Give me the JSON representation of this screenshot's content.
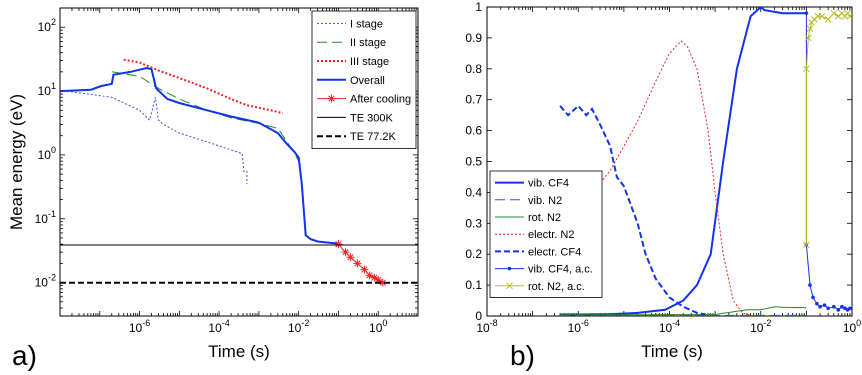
{
  "chart_data": [
    {
      "type": "line",
      "panel_label": "a)",
      "xlabel": "Time (s)",
      "ylabel": "Mean energy (eV)",
      "xscale": "log",
      "yscale": "log",
      "xlim": [
        1e-08,
        10
      ],
      "ylim": [
        0.003,
        200
      ],
      "x_ticks": [
        {
          "value": 1e-06,
          "base": "10",
          "exp": "-6"
        },
        {
          "value": 0.0001,
          "base": "10",
          "exp": "-4"
        },
        {
          "value": 0.01,
          "base": "10",
          "exp": "-2"
        },
        {
          "value": 1,
          "base": "10",
          "exp": "0"
        }
      ],
      "y_ticks": [
        {
          "value": 0.01,
          "base": "10",
          "exp": "-2"
        },
        {
          "value": 0.1,
          "base": "10",
          "exp": "-1"
        },
        {
          "value": 1,
          "base": "10",
          "exp": "0"
        },
        {
          "value": 10,
          "base": "10",
          "exp": "1"
        },
        {
          "value": 100,
          "base": "10",
          "exp": "2"
        }
      ],
      "legend_position": "top-right",
      "series": [
        {
          "name": "I stage",
          "color": "#3355dd",
          "dash": "2,2",
          "width": 1,
          "x": [
            1.5e-08,
            2e-07,
            1e-06,
            1.8e-06,
            2.5e-06,
            3e-06,
            4e-06,
            1e-05,
            5e-05,
            0.0002,
            0.00038,
            0.00042,
            0.0005,
            0.0005
          ],
          "y": [
            10,
            8,
            5,
            3.5,
            8,
            3.5,
            3,
            2.2,
            1.6,
            1.2,
            1.05,
            0.55,
            0.55,
            0.35
          ]
        },
        {
          "name": "II stage",
          "color": "#228822",
          "dash": "10,5",
          "width": 1,
          "x": [
            2e-07,
            1e-06,
            3e-06,
            1e-05,
            5e-05,
            0.0002,
            0.001,
            0.003,
            0.007,
            0.012,
            0.013
          ],
          "y": [
            20,
            17,
            11,
            7.5,
            5,
            3.8,
            3.1,
            2.6,
            1.2,
            0.65,
            0.62
          ]
        },
        {
          "name": "III stage",
          "color": "#ee2222",
          "dash": "2,2",
          "width": 2,
          "x": [
            4e-07,
            1e-06,
            3e-06,
            1e-05,
            5e-05,
            0.0002,
            0.0005,
            0.002,
            0.004
          ],
          "y": [
            31,
            28,
            21,
            16,
            11,
            7.5,
            6,
            5,
            4.5
          ]
        },
        {
          "name": "Overall",
          "color": "#1133ee",
          "dash": "",
          "width": 2,
          "x": [
            1e-08,
            6e-08,
            1.1e-07,
            2e-07,
            2.2e-07,
            6e-07,
            1.5e-06,
            2e-06,
            2.6e-06,
            5e-06,
            1e-05,
            5e-05,
            0.0002,
            0.001,
            0.003,
            0.005,
            0.008,
            0.01,
            0.012,
            0.015,
            0.02,
            0.03,
            0.06,
            0.1
          ],
          "y": [
            10,
            10.5,
            12,
            13,
            18,
            20,
            23,
            22,
            11,
            7.5,
            6.5,
            5,
            4,
            3.2,
            2.2,
            1.5,
            1.1,
            0.9,
            0.35,
            0.055,
            0.048,
            0.044,
            0.042,
            0.041
          ]
        },
        {
          "name": "After cooling",
          "color": "#ee2222",
          "dash": "",
          "width": 1,
          "marker": "star",
          "x": [
            0.1,
            0.15,
            0.2,
            0.3,
            0.45,
            0.6,
            0.8,
            1.0,
            1.3
          ],
          "y": [
            0.04,
            0.03,
            0.025,
            0.02,
            0.016,
            0.013,
            0.012,
            0.011,
            0.01
          ]
        },
        {
          "name": "TE 300K",
          "color": "#000000",
          "dash": "",
          "width": 1,
          "x": [
            1e-08,
            10
          ],
          "y": [
            0.0388,
            0.0388
          ]
        },
        {
          "name": "TE 77.2K",
          "color": "#000000",
          "dash": "6,3",
          "width": 2,
          "x": [
            1e-08,
            10
          ],
          "y": [
            0.00998,
            0.00998
          ]
        }
      ]
    },
    {
      "type": "line",
      "panel_label": "b)",
      "xlabel": "Time (s)",
      "ylabel": "",
      "xscale": "log",
      "yscale": "linear",
      "xlim": [
        1e-08,
        1
      ],
      "ylim": [
        0,
        1
      ],
      "x_ticks": [
        {
          "value": 1e-08,
          "base": "10",
          "exp": "-8"
        },
        {
          "value": 1e-06,
          "base": "10",
          "exp": "-6"
        },
        {
          "value": 0.0001,
          "base": "10",
          "exp": "-4"
        },
        {
          "value": 0.01,
          "base": "10",
          "exp": "-2"
        },
        {
          "value": 1,
          "base": "10",
          "exp": "0"
        }
      ],
      "y_ticks": [
        "0",
        "0.1",
        "0.2",
        "0.3",
        "0.4",
        "0.5",
        "0.6",
        "0.7",
        "0.8",
        "0.9",
        "1"
      ],
      "legend_position": "bottom-left",
      "series": [
        {
          "name": "vib. CF4",
          "color": "#1133ee",
          "dash": "",
          "width": 2,
          "x": [
            4e-07,
            1e-06,
            5e-06,
            2e-05,
            8e-05,
            0.0002,
            0.0004,
            0.0008,
            0.0015,
            0.003,
            0.006,
            0.01,
            0.012,
            0.03,
            0.1
          ],
          "y": [
            0.005,
            0.005,
            0.006,
            0.01,
            0.02,
            0.05,
            0.1,
            0.2,
            0.5,
            0.8,
            0.97,
            1.0,
            0.99,
            0.98,
            0.98
          ]
        },
        {
          "name": "vib. N2",
          "color": "#3355dd",
          "dash": "10,5",
          "width": 1,
          "x": [
            4e-07,
            1e-06,
            1e-05,
            0.0001,
            0.001,
            0.01,
            0.1
          ],
          "y": [
            0.002,
            0.002,
            0.002,
            0.002,
            0.002,
            0.002,
            0.002
          ]
        },
        {
          "name": "rot. N2",
          "color": "#228822",
          "dash": "",
          "width": 1,
          "x": [
            4e-07,
            1e-05,
            0.001,
            0.005,
            0.01,
            0.02,
            0.03,
            0.1
          ],
          "y": [
            0.004,
            0.004,
            0.005,
            0.02,
            0.02,
            0.03,
            0.028,
            0.027
          ]
        },
        {
          "name": "electr. N2",
          "color": "#ee2222",
          "dash": "2,2",
          "width": 1,
          "x": [
            2e-06,
            3e-06,
            5e-06,
            1e-05,
            2e-05,
            5e-05,
            0.0001,
            0.00018,
            0.00025,
            0.0004,
            0.0007,
            0.001,
            0.0015,
            0.0025,
            0.004,
            0.006
          ],
          "y": [
            0.2,
            0.43,
            0.47,
            0.55,
            0.63,
            0.76,
            0.85,
            0.89,
            0.87,
            0.8,
            0.6,
            0.4,
            0.2,
            0.05,
            0.01,
            0.002
          ]
        },
        {
          "name": "electr. CF4",
          "color": "#1133ee",
          "dash": "6,3",
          "width": 2,
          "x": [
            4e-07,
            6e-07,
            1e-06,
            1.5e-06,
            2e-06,
            3e-06,
            5e-06,
            7e-06,
            1e-05,
            1.5e-05,
            2e-05,
            3e-05,
            5e-05,
            0.0001,
            0.0002,
            0.0004,
            0.0006
          ],
          "y": [
            0.68,
            0.65,
            0.68,
            0.65,
            0.67,
            0.62,
            0.55,
            0.45,
            0.42,
            0.35,
            0.3,
            0.2,
            0.12,
            0.06,
            0.03,
            0.01,
            0.005
          ]
        },
        {
          "name": "vib. CF4, a.c.",
          "color": "#1133ee",
          "dash": "",
          "width": 1,
          "marker": "dot",
          "x": [
            0.1,
            0.1,
            0.12,
            0.14,
            0.17,
            0.2,
            0.25,
            0.3,
            0.4,
            0.5,
            0.6,
            0.7,
            0.8,
            0.9
          ],
          "y": [
            0.98,
            0.23,
            0.1,
            0.06,
            0.04,
            0.03,
            0.035,
            0.025,
            0.03,
            0.02,
            0.03,
            0.025,
            0.02,
            0.025
          ]
        },
        {
          "name": "rot. N2, a.c.",
          "color": "#bbbb22",
          "dash": "",
          "width": 1,
          "marker": "x",
          "x": [
            0.1,
            0.1,
            0.11,
            0.12,
            0.13,
            0.15,
            0.18,
            0.22,
            0.3,
            0.4,
            0.5,
            0.6,
            0.7,
            0.8,
            0.9
          ],
          "y": [
            0.23,
            0.8,
            0.9,
            0.93,
            0.95,
            0.96,
            0.97,
            0.97,
            0.96,
            0.98,
            0.97,
            0.98,
            0.97,
            0.98,
            0.97
          ]
        }
      ]
    }
  ]
}
